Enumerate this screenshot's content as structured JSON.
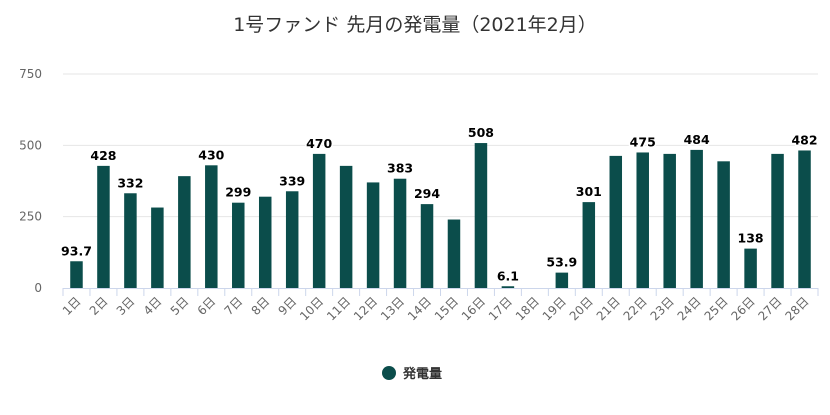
{
  "chart_data": {
    "type": "bar",
    "title": "1号ファンド 先月の発電量（2021年2月）",
    "categories": [
      "1日",
      "2日",
      "3日",
      "4日",
      "5日",
      "6日",
      "7日",
      "8日",
      "9日",
      "10日",
      "11日",
      "12日",
      "13日",
      "14日",
      "15日",
      "16日",
      "17日",
      "18日",
      "19日",
      "20日",
      "21日",
      "22日",
      "23日",
      "24日",
      "25日",
      "26日",
      "27日",
      "28日"
    ],
    "series": [
      {
        "name": "発電量",
        "color": "#0b4d4b",
        "values": [
          93.7,
          428,
          332,
          282,
          392,
          430,
          299,
          320,
          339,
          470,
          428,
          370,
          383,
          294,
          240,
          508,
          6.1,
          0,
          53.9,
          301,
          463,
          475,
          470,
          484,
          444,
          138,
          470,
          482
        ],
        "labels": [
          "93.7",
          "428",
          "332",
          "",
          "",
          "430",
          "299",
          "",
          "339",
          "470",
          "",
          "",
          "383",
          "294",
          "",
          "508",
          "6.1",
          "",
          "53.9",
          "301",
          "",
          "475",
          "",
          "484",
          "",
          "138",
          "",
          "482"
        ]
      }
    ],
    "yticks": [
      "0",
      "250",
      "500",
      "750"
    ],
    "ylim": [
      0,
      750
    ],
    "grid": true,
    "legend_position": "bottom"
  }
}
